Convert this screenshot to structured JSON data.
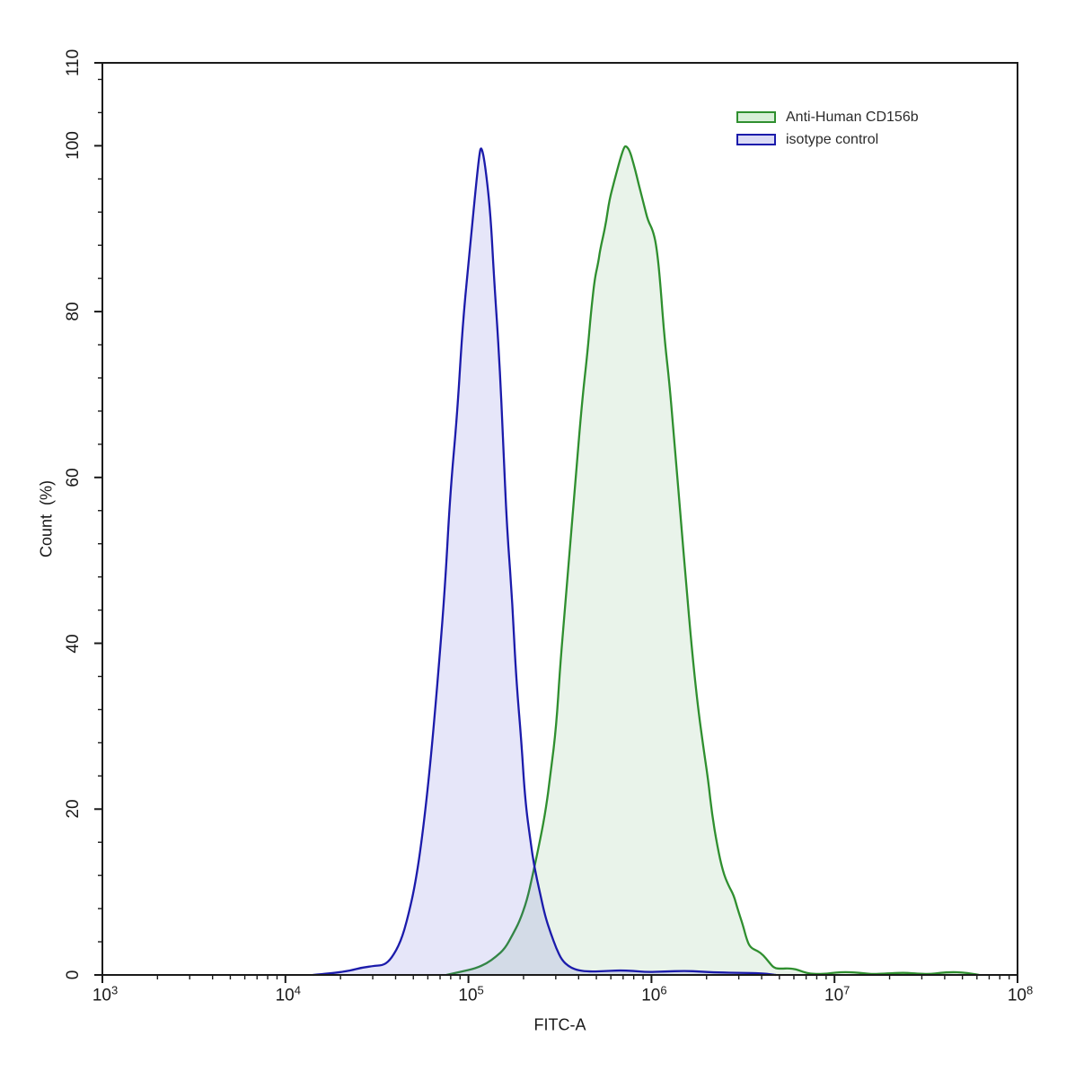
{
  "figure": {
    "background": "#ffffff",
    "axis_color": "#1a1a1a"
  },
  "legend": {
    "position": "upper right",
    "items": [
      {
        "label": "Anti-Human CD156b",
        "swatch_fill": "#d8efd8",
        "swatch_border": "#2f8f2f"
      },
      {
        "label": "isotype control",
        "swatch_fill": "#dadaf5",
        "swatch_border": "#1b1bab"
      }
    ]
  },
  "chart_data": {
    "type": "area",
    "title": "",
    "xlabel": "FITC-A",
    "ylabel": "Count  (%)",
    "x_scale": "log10",
    "x_range": [
      1000,
      100000000
    ],
    "x_major_tick_exponents": [
      3,
      4,
      5,
      6,
      7,
      8
    ],
    "x_tick_base": "10",
    "ylim": [
      0,
      110
    ],
    "y_major_ticks": [
      0,
      20,
      40,
      60,
      80,
      100,
      110
    ],
    "y_minor_step": 4,
    "grid": false,
    "legend_position": "upper right",
    "series": [
      {
        "name": "Anti-Human CD156b",
        "line_color": "#2f8f2f",
        "fill_color": "rgba(70,160,80,0.12)",
        "peak": {
          "x": 730000,
          "y_pct": 100
        },
        "points_log10x_pct": [
          [
            4.88,
            0
          ],
          [
            4.96,
            0.4
          ],
          [
            5.04,
            0.8
          ],
          [
            5.1,
            1.4
          ],
          [
            5.15,
            2.2
          ],
          [
            5.2,
            3.2
          ],
          [
            5.24,
            4.8
          ],
          [
            5.28,
            6.5
          ],
          [
            5.32,
            9
          ],
          [
            5.35,
            12
          ],
          [
            5.38,
            15
          ],
          [
            5.42,
            19.5
          ],
          [
            5.45,
            24.5
          ],
          [
            5.48,
            30
          ],
          [
            5.5,
            37
          ],
          [
            5.53,
            45
          ],
          [
            5.56,
            53
          ],
          [
            5.59,
            61
          ],
          [
            5.62,
            69
          ],
          [
            5.65,
            75
          ],
          [
            5.67,
            80
          ],
          [
            5.69,
            84
          ],
          [
            5.71,
            86
          ],
          [
            5.72,
            87.5
          ],
          [
            5.75,
            90.5
          ],
          [
            5.77,
            93.5
          ],
          [
            5.8,
            96
          ],
          [
            5.83,
            98.5
          ],
          [
            5.85,
            99.8
          ],
          [
            5.86,
            100
          ],
          [
            5.88,
            99.5
          ],
          [
            5.9,
            98
          ],
          [
            5.92,
            96.3
          ],
          [
            5.94,
            94.5
          ],
          [
            5.96,
            92.8
          ],
          [
            5.98,
            91
          ],
          [
            6.01,
            89.7
          ],
          [
            6.03,
            87.5
          ],
          [
            6.05,
            83
          ],
          [
            6.07,
            77
          ],
          [
            6.1,
            71
          ],
          [
            6.13,
            63
          ],
          [
            6.16,
            55
          ],
          [
            6.19,
            47
          ],
          [
            6.22,
            39.5
          ],
          [
            6.25,
            33
          ],
          [
            6.28,
            28
          ],
          [
            6.31,
            23.5
          ],
          [
            6.33,
            19.5
          ],
          [
            6.36,
            15.5
          ],
          [
            6.39,
            12.5
          ],
          [
            6.42,
            10.8
          ],
          [
            6.45,
            9.6
          ],
          [
            6.47,
            8
          ],
          [
            6.5,
            6
          ],
          [
            6.52,
            4.3
          ],
          [
            6.54,
            3.3
          ],
          [
            6.58,
            2.9
          ],
          [
            6.61,
            2.4
          ],
          [
            6.64,
            1.6
          ],
          [
            6.67,
            0.8
          ],
          [
            6.71,
            0.75
          ],
          [
            6.75,
            0.8
          ],
          [
            6.79,
            0.7
          ],
          [
            6.83,
            0.35
          ],
          [
            6.87,
            0.15
          ],
          [
            6.91,
            0.1
          ],
          [
            6.96,
            0.15
          ],
          [
            7.01,
            0.3
          ],
          [
            7.06,
            0.35
          ],
          [
            7.11,
            0.3
          ],
          [
            7.16,
            0.2
          ],
          [
            7.21,
            0.1
          ],
          [
            7.27,
            0.15
          ],
          [
            7.35,
            0.25
          ],
          [
            7.4,
            0.25
          ],
          [
            7.45,
            0.15
          ],
          [
            7.52,
            0.1
          ],
          [
            7.58,
            0.25
          ],
          [
            7.64,
            0.35
          ],
          [
            7.7,
            0.3
          ],
          [
            7.75,
            0.15
          ],
          [
            7.79,
            0
          ]
        ]
      },
      {
        "name": "isotype control",
        "line_color": "#1b1bab",
        "fill_color": "rgba(80,80,215,0.14)",
        "peak": {
          "x": 120000,
          "y_pct": 100
        },
        "points_log10x_pct": [
          [
            4.15,
            0
          ],
          [
            4.25,
            0.2
          ],
          [
            4.35,
            0.5
          ],
          [
            4.42,
            0.9
          ],
          [
            4.49,
            1.1
          ],
          [
            4.54,
            1.2
          ],
          [
            4.58,
            2
          ],
          [
            4.63,
            4
          ],
          [
            4.67,
            7
          ],
          [
            4.71,
            11
          ],
          [
            4.75,
            17
          ],
          [
            4.79,
            25
          ],
          [
            4.83,
            35
          ],
          [
            4.87,
            46
          ],
          [
            4.9,
            58
          ],
          [
            4.94,
            68
          ],
          [
            4.97,
            79
          ],
          [
            5.01,
            88
          ],
          [
            5.04,
            95
          ],
          [
            5.06,
            99
          ],
          [
            5.07,
            100
          ],
          [
            5.09,
            98
          ],
          [
            5.12,
            92
          ],
          [
            5.14,
            84
          ],
          [
            5.17,
            74
          ],
          [
            5.19,
            64
          ],
          [
            5.21,
            54
          ],
          [
            5.24,
            45
          ],
          [
            5.26,
            36
          ],
          [
            5.29,
            28
          ],
          [
            5.31,
            21
          ],
          [
            5.34,
            16
          ],
          [
            5.36,
            13
          ],
          [
            5.39,
            10
          ],
          [
            5.42,
            7
          ],
          [
            5.45,
            5
          ],
          [
            5.48,
            3.2
          ],
          [
            5.51,
            1.8
          ],
          [
            5.55,
            1
          ],
          [
            5.59,
            0.6
          ],
          [
            5.65,
            0.4
          ],
          [
            5.74,
            0.45
          ],
          [
            5.82,
            0.55
          ],
          [
            5.9,
            0.5
          ],
          [
            5.97,
            0.35
          ],
          [
            6.07,
            0.4
          ],
          [
            6.18,
            0.5
          ],
          [
            6.27,
            0.4
          ],
          [
            6.36,
            0.3
          ],
          [
            6.49,
            0.25
          ],
          [
            6.6,
            0.2
          ],
          [
            6.66,
            0.05
          ],
          [
            6.68,
            0
          ]
        ]
      }
    ]
  }
}
